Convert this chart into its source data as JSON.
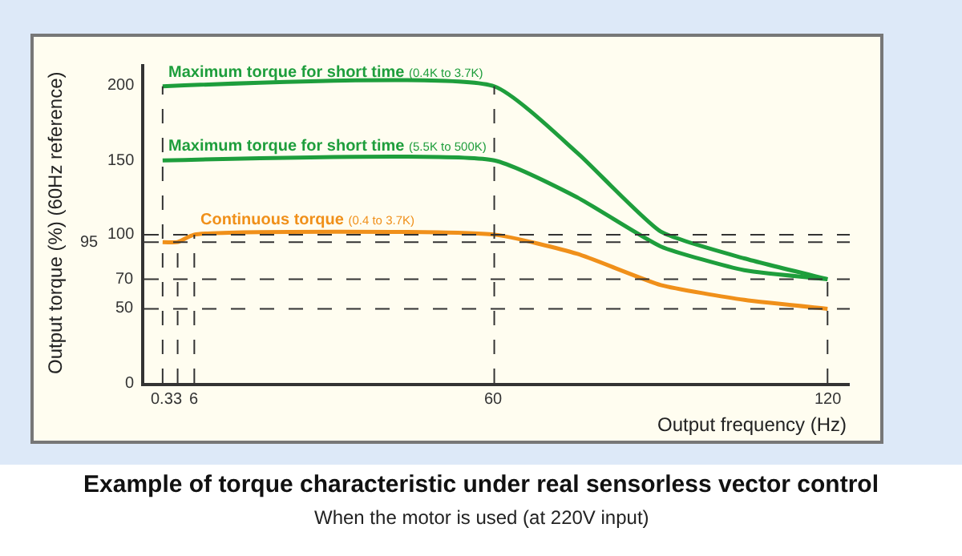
{
  "chart_data": {
    "type": "line",
    "title": "Example of torque characteristic under real sensorless vector control",
    "subtitle": "When the motor is used (at 220V input)",
    "xlabel": "Output frequency (Hz)",
    "ylabel": "Output torque (%) (60Hz reference)",
    "xlim": [
      -3,
      124
    ],
    "ylim": [
      0,
      215
    ],
    "xticks": [
      {
        "value": 0.3,
        "label": "0.3"
      },
      3,
      6,
      60,
      120
    ],
    "yticks": [
      0,
      50,
      70,
      100,
      150,
      200
    ],
    "series": [
      {
        "name": "Maximum torque for short time (0.4K to 3.7K)",
        "color": "#1e9e3c",
        "x": [
          0.3,
          60,
          75,
          90,
          105,
          120
        ],
        "values": [
          200,
          200,
          155,
          102,
          84,
          70
        ]
      },
      {
        "name": "Maximum torque for short time (5.5K to 500K)",
        "color": "#1e9e3c",
        "x": [
          0.3,
          60,
          75,
          90,
          105,
          120
        ],
        "values": [
          150,
          150,
          125,
          92,
          76,
          70
        ]
      },
      {
        "name": "Continuous torque (0.4 to 3.7K)",
        "color": "#f0901a",
        "x": [
          0.3,
          3,
          6,
          60,
          75,
          90,
          105,
          120
        ],
        "values": [
          95,
          95,
          100,
          100,
          87,
          66,
          56,
          50
        ]
      }
    ],
    "ref_lines": [
      {
        "axis": "x",
        "value": 0.3,
        "color": "#333333",
        "line_style": "dashed"
      },
      {
        "axis": "x",
        "value": 3,
        "color": "#333333",
        "line_style": "dashed"
      },
      {
        "axis": "x",
        "value": 6,
        "color": "#333333",
        "line_style": "dashed"
      },
      {
        "axis": "x",
        "value": 60,
        "color": "#333333",
        "line_style": "dashed"
      },
      {
        "axis": "x",
        "value": 120,
        "color": "#333333",
        "line_style": "dashed"
      },
      {
        "axis": "y",
        "value": 100,
        "color": "#333333",
        "line_style": "dashed"
      },
      {
        "axis": "y",
        "value": 95,
        "color": "#333333",
        "line_style": "dashed",
        "label": "95"
      },
      {
        "axis": "y",
        "value": 70,
        "color": "#333333",
        "line_style": "dashed"
      },
      {
        "axis": "y",
        "value": 50,
        "color": "#333333",
        "line_style": "dashed"
      }
    ],
    "grid": false,
    "marker": "none",
    "line_style": "solid"
  }
}
